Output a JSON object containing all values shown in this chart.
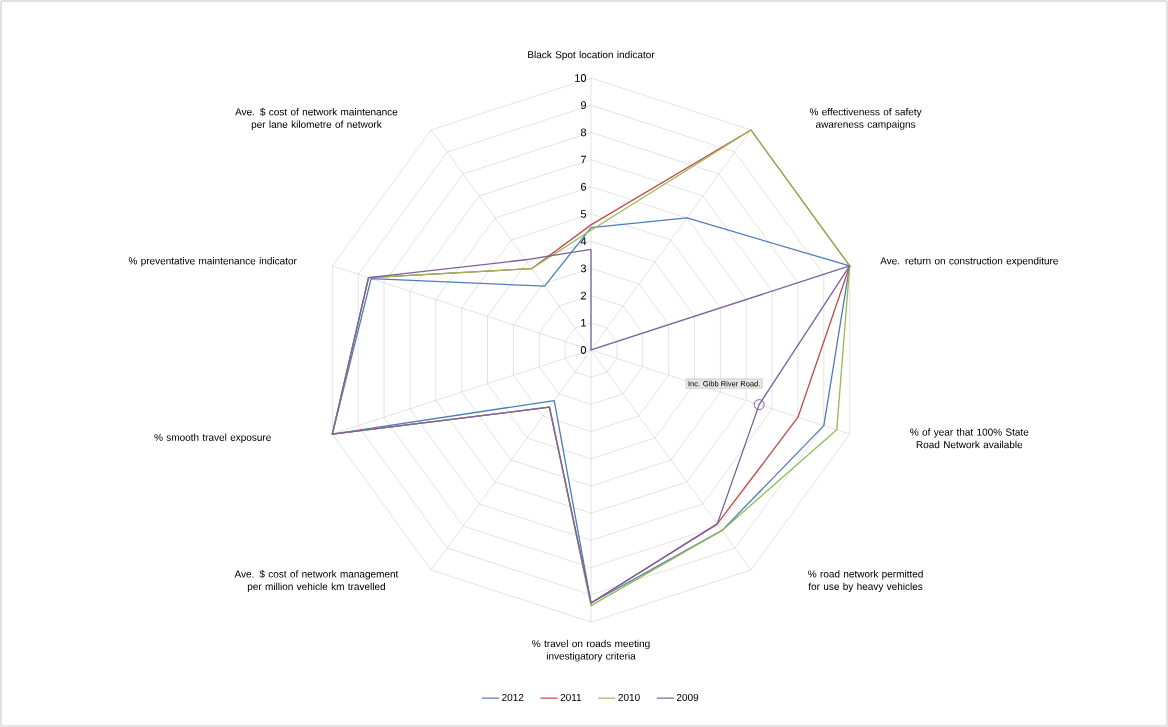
{
  "chart_data": {
    "type": "radar",
    "categories": [
      "Black Spot location indicator",
      "% effectiveness of safety awareness campaigns",
      "Ave. return on construction expenditure",
      "% of year that 100% State Road Network available",
      "% road network permitted for use by heavy vehicles",
      "% travel on roads meeting investigatory criteria",
      "Ave. $ cost of network management per million vehicle km travelled",
      "% smooth travel exposure",
      "% preventative maintenance indicator",
      "Ave. $ cost of network maintenance per lane kilometre of network"
    ],
    "series": [
      {
        "name": "2012",
        "color": "#4a7ebb",
        "values": [
          4.5,
          6,
          10,
          9,
          8.2,
          9.3,
          2.3,
          10,
          8.5,
          2.9
        ]
      },
      {
        "name": "2011",
        "color": "#be4b48",
        "values": [
          4.6,
          10,
          10,
          8,
          7.9,
          9.3,
          2.6,
          10,
          8.6,
          3.7
        ]
      },
      {
        "name": "2010",
        "color": "#98b954",
        "values": [
          4.4,
          10,
          10,
          9.5,
          8.2,
          9.4,
          2.6,
          10,
          8.6,
          3.7
        ]
      },
      {
        "name": "2009",
        "color": "#7d60a0",
        "values": [
          3.7,
          0,
          10,
          6.5,
          7.9,
          9.3,
          2.6,
          10,
          8.6,
          4.1
        ]
      }
    ],
    "ylim": [
      0,
      10
    ],
    "yticks": [
      0,
      1,
      2,
      3,
      4,
      5,
      6,
      7,
      8,
      9,
      10
    ],
    "grid": true,
    "legend": "bottom",
    "annotations": [
      {
        "text": "Inc. Gibb River Road.",
        "x": "% of year that 100% State Road Network available"
      }
    ]
  }
}
